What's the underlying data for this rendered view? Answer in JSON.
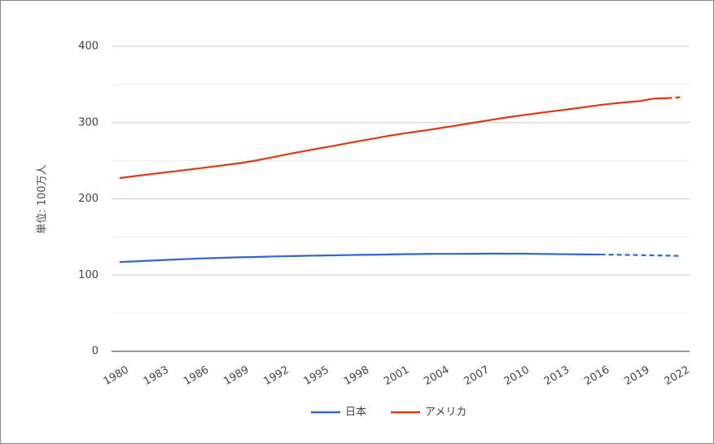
{
  "chart_data": {
    "type": "line",
    "y_label": "単位: 100万人",
    "x": [
      1980,
      1981,
      1982,
      1983,
      1984,
      1985,
      1986,
      1987,
      1988,
      1989,
      1990,
      1991,
      1992,
      1993,
      1994,
      1995,
      1996,
      1997,
      1998,
      1999,
      2000,
      2001,
      2002,
      2003,
      2004,
      2005,
      2006,
      2007,
      2008,
      2009,
      2010,
      2011,
      2012,
      2013,
      2014,
      2015,
      2016,
      2017,
      2018,
      2019,
      2020,
      2021,
      2022
    ],
    "series": [
      {
        "name": "日本",
        "color": "#3366cc",
        "dash_from": 2016,
        "values": [
          117.1,
          117.9,
          118.7,
          119.5,
          120.3,
          121.0,
          121.7,
          122.3,
          122.8,
          123.3,
          123.6,
          124.1,
          124.6,
          124.9,
          125.3,
          125.6,
          125.9,
          126.2,
          126.5,
          126.7,
          126.9,
          127.3,
          127.5,
          127.7,
          127.8,
          127.8,
          127.9,
          128.0,
          128.1,
          128.0,
          128.1,
          127.8,
          127.6,
          127.4,
          127.2,
          127.1,
          127.0,
          126.7,
          126.4,
          126.2,
          125.8,
          125.5,
          125.1
        ]
      },
      {
        "name": "アメリカ",
        "color": "#dc3912",
        "dash_from": 2021,
        "values": [
          227.2,
          229.5,
          231.7,
          233.8,
          235.8,
          237.9,
          240.1,
          242.3,
          244.5,
          246.8,
          249.6,
          253.0,
          256.5,
          259.9,
          263.1,
          266.3,
          269.4,
          272.7,
          275.9,
          279.0,
          282.2,
          285.0,
          287.6,
          290.1,
          292.8,
          295.5,
          298.4,
          301.2,
          304.1,
          306.8,
          309.3,
          311.6,
          313.9,
          316.1,
          318.4,
          320.7,
          323.1,
          325.1,
          326.8,
          328.3,
          331.5,
          332.0,
          333.3
        ]
      }
    ],
    "xlim": [
      1980,
      2022
    ],
    "xticks": [
      1980,
      1983,
      1986,
      1989,
      1992,
      1995,
      1998,
      2001,
      2004,
      2007,
      2010,
      2013,
      2016,
      2019,
      2022
    ],
    "ylim": [
      0,
      400
    ],
    "yticks": [
      0,
      100,
      200,
      300,
      400
    ],
    "minor_yticks": [
      50,
      150,
      250,
      350
    ],
    "grid": true,
    "legend": "bottom"
  }
}
